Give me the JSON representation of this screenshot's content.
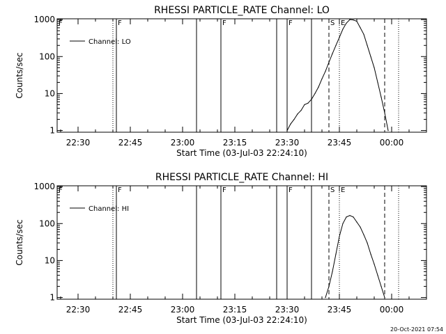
{
  "footer": {
    "timestamp": "20-Oct-2021 07:54"
  },
  "colors": {
    "background": "#ffffff",
    "foreground": "#000000"
  },
  "chart_data": [
    {
      "type": "line",
      "title": "RHESSI PARTICLE_RATE Channel: LO",
      "xlabel": "Start Time (03-Jul-03 22:24:10)",
      "ylabel": "Counts/sec",
      "yscale": "log",
      "xlim": [
        "22:24",
        "00:10"
      ],
      "ylim": [
        0.9,
        1050
      ],
      "xticks": [
        "22:30",
        "22:45",
        "23:00",
        "23:15",
        "23:30",
        "23:45",
        "00:00"
      ],
      "yticks": [
        "1",
        "10",
        "100",
        "1000"
      ],
      "grid": false,
      "legend": {
        "position": "top-left",
        "entries": [
          "Channel: LO"
        ]
      },
      "markers": [
        {
          "time": "22:24",
          "label": "F",
          "style": "dotted"
        },
        {
          "time": "22:40",
          "label": "",
          "style": "dotted"
        },
        {
          "time": "22:41",
          "label": "F",
          "style": "solid"
        },
        {
          "time": "23:04",
          "label": "",
          "style": "solid"
        },
        {
          "time": "23:11",
          "label": "F",
          "style": "solid"
        },
        {
          "time": "23:27",
          "label": "",
          "style": "solid"
        },
        {
          "time": "23:30",
          "label": "F",
          "style": "solid"
        },
        {
          "time": "23:37",
          "label": "",
          "style": "solid"
        },
        {
          "time": "23:42",
          "label": "S",
          "style": "dashed"
        },
        {
          "time": "23:45",
          "label": "E",
          "style": "dotted"
        },
        {
          "time": "23:58",
          "label": "",
          "style": "dashed"
        },
        {
          "time": "00:02",
          "label": "",
          "style": "dotted"
        }
      ],
      "series": [
        {
          "name": "Channel: LO",
          "x": [
            "23:30",
            "23:31",
            "23:32",
            "23:33",
            "23:34",
            "23:35",
            "23:36",
            "23:37",
            "23:38",
            "23:39",
            "23:40",
            "23:41",
            "23:42",
            "23:43",
            "23:44",
            "23:45",
            "23:46",
            "23:47",
            "23:48",
            "23:49",
            "23:50",
            "23:51",
            "23:52",
            "23:53",
            "23:54",
            "23:55",
            "23:56",
            "23:57",
            "23:58",
            "23:59"
          ],
          "y": [
            1,
            1.5,
            2,
            2.8,
            3.5,
            5,
            5.5,
            7,
            10,
            15,
            25,
            40,
            70,
            120,
            200,
            330,
            550,
            800,
            1000,
            980,
            900,
            600,
            400,
            200,
            100,
            50,
            20,
            8,
            3,
            1
          ]
        }
      ]
    },
    {
      "type": "line",
      "title": "RHESSI PARTICLE_RATE Channel: HI",
      "xlabel": "Start Time (03-Jul-03 22:24:10)",
      "ylabel": "Counts/sec",
      "yscale": "log",
      "xlim": [
        "22:24",
        "00:10"
      ],
      "ylim": [
        0.9,
        1050
      ],
      "xticks": [
        "22:30",
        "22:45",
        "23:00",
        "23:15",
        "23:30",
        "23:45",
        "00:00"
      ],
      "yticks": [
        "1",
        "10",
        "100",
        "1000"
      ],
      "grid": false,
      "legend": {
        "position": "top-left",
        "entries": [
          "Channel: HI"
        ]
      },
      "markers": [
        {
          "time": "22:24",
          "label": "F",
          "style": "dotted"
        },
        {
          "time": "22:40",
          "label": "",
          "style": "dotted"
        },
        {
          "time": "22:41",
          "label": "F",
          "style": "solid"
        },
        {
          "time": "23:04",
          "label": "",
          "style": "solid"
        },
        {
          "time": "23:11",
          "label": "F",
          "style": "solid"
        },
        {
          "time": "23:27",
          "label": "",
          "style": "solid"
        },
        {
          "time": "23:30",
          "label": "F",
          "style": "solid"
        },
        {
          "time": "23:37",
          "label": "",
          "style": "solid"
        },
        {
          "time": "23:42",
          "label": "S",
          "style": "dashed"
        },
        {
          "time": "23:45",
          "label": "E",
          "style": "dotted"
        },
        {
          "time": "23:58",
          "label": "",
          "style": "dashed"
        },
        {
          "time": "00:02",
          "label": "",
          "style": "dotted"
        }
      ],
      "series": [
        {
          "name": "Channel: HI",
          "x": [
            "23:41",
            "23:42",
            "23:43",
            "23:44",
            "23:45",
            "23:46",
            "23:47",
            "23:48",
            "23:49",
            "23:50",
            "23:51",
            "23:52",
            "23:53",
            "23:54",
            "23:55",
            "23:56",
            "23:57",
            "23:58"
          ],
          "y": [
            1,
            2,
            5,
            15,
            45,
            100,
            150,
            165,
            150,
            110,
            80,
            50,
            30,
            15,
            8,
            4,
            2,
            1
          ]
        }
      ]
    }
  ]
}
